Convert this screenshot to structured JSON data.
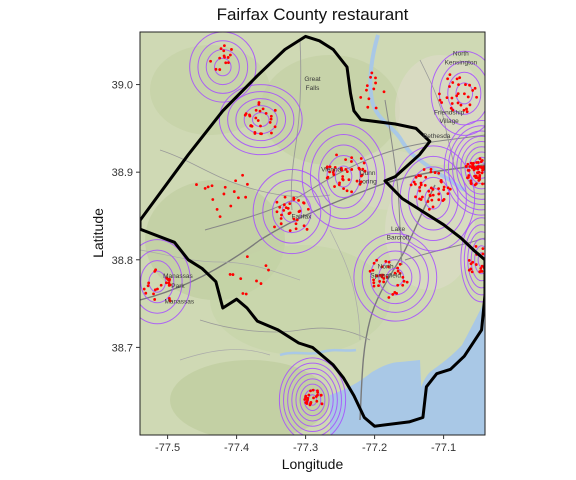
{
  "chart_data": {
    "type": "map",
    "title": "Fairfax County restaurant",
    "xlabel": "Longitude",
    "ylabel": "Latitude",
    "xlim": [
      -77.54,
      -77.04
    ],
    "ylim": [
      38.6,
      39.06
    ],
    "xticks": [
      -77.5,
      -77.4,
      -77.3,
      -77.2,
      -77.1
    ],
    "xtick_labels": [
      "-77.5",
      "-77.4",
      "-77.3",
      "-77.2",
      "-77.1"
    ],
    "yticks": [
      38.7,
      38.8,
      38.9,
      39.0
    ],
    "ytick_labels": [
      "38.7",
      "38.8",
      "38.9",
      "39.0"
    ],
    "grid": false,
    "colors": {
      "contour": "#a64dff",
      "points": "#ff0000",
      "boundary": "#000000",
      "water": "#a9c8e6",
      "land": "#cfd9b4"
    },
    "places": [
      {
        "name": "Great",
        "lon": -77.29,
        "lat": 39.004
      },
      {
        "name": "Falls",
        "lon": -77.29,
        "lat": 38.994
      },
      {
        "name": "North",
        "lon": -77.075,
        "lat": 39.033
      },
      {
        "name": "Kensington",
        "lon": -77.075,
        "lat": 39.023
      },
      {
        "name": "Friendship",
        "lon": -77.092,
        "lat": 38.966
      },
      {
        "name": "Village",
        "lon": -77.092,
        "lat": 38.956
      },
      {
        "name": "Bethesda",
        "lon": -77.11,
        "lat": 38.939
      },
      {
        "name": "Vienna",
        "lon": -77.263,
        "lat": 38.901
      },
      {
        "name": "Dunn",
        "lon": -77.21,
        "lat": 38.897
      },
      {
        "name": "Loring",
        "lon": -77.21,
        "lat": 38.887
      },
      {
        "name": "Lake",
        "lon": -77.166,
        "lat": 38.833
      },
      {
        "name": "Barcroft",
        "lon": -77.166,
        "lat": 38.823
      },
      {
        "name": "Fairfax",
        "lon": -77.306,
        "lat": 38.847
      },
      {
        "name": "North",
        "lon": -77.184,
        "lat": 38.79
      },
      {
        "name": "Springfield",
        "lon": -77.184,
        "lat": 38.78
      },
      {
        "name": "Manassas",
        "lon": -77.485,
        "lat": 38.779
      },
      {
        "name": "Park",
        "lon": -77.485,
        "lat": 38.768
      },
      {
        "name": "Manassas",
        "lon": -77.483,
        "lat": 38.75
      }
    ],
    "boundary": [
      [
        -77.54,
        38.845
      ],
      [
        -77.47,
        38.92
      ],
      [
        -77.42,
        38.97
      ],
      [
        -77.37,
        39.01
      ],
      [
        -77.33,
        39.04
      ],
      [
        -77.3,
        39.055
      ],
      [
        -77.28,
        39.05
      ],
      [
        -77.26,
        39.04
      ],
      [
        -77.24,
        39.02
      ],
      [
        -77.235,
        38.99
      ],
      [
        -77.23,
        38.97
      ],
      [
        -77.22,
        38.96
      ],
      [
        -77.17,
        38.955
      ],
      [
        -77.14,
        38.95
      ],
      [
        -77.12,
        38.935
      ],
      [
        -77.135,
        38.92
      ],
      [
        -77.17,
        38.895
      ],
      [
        -77.185,
        38.89
      ],
      [
        -77.16,
        38.87
      ],
      [
        -77.13,
        38.855
      ],
      [
        -77.1,
        38.84
      ],
      [
        -77.075,
        38.825
      ],
      [
        -77.055,
        38.81
      ],
      [
        -77.04,
        38.8
      ],
      [
        -77.04,
        38.76
      ],
      [
        -77.045,
        38.72
      ],
      [
        -77.07,
        38.69
      ],
      [
        -77.09,
        38.675
      ],
      [
        -77.11,
        38.67
      ],
      [
        -77.125,
        38.655
      ],
      [
        -77.13,
        38.62
      ],
      [
        -77.15,
        38.615
      ],
      [
        -77.2,
        38.61
      ],
      [
        -77.215,
        38.62
      ],
      [
        -77.23,
        38.645
      ],
      [
        -77.245,
        38.665
      ],
      [
        -77.26,
        38.68
      ],
      [
        -77.29,
        38.7
      ],
      [
        -77.31,
        38.705
      ],
      [
        -77.34,
        38.72
      ],
      [
        -77.37,
        38.73
      ],
      [
        -77.385,
        38.745
      ],
      [
        -77.4,
        38.755
      ],
      [
        -77.41,
        38.75
      ],
      [
        -77.42,
        38.745
      ],
      [
        -77.43,
        38.775
      ],
      [
        -77.45,
        38.79
      ],
      [
        -77.47,
        38.8
      ],
      [
        -77.49,
        38.82
      ],
      [
        -77.54,
        38.835
      ]
    ],
    "density_centers": [
      {
        "lon": -77.29,
        "lat": 38.64,
        "rings": 8,
        "rx": 0.006,
        "ry": 0.006
      },
      {
        "lon": -77.365,
        "lat": 38.96,
        "rings": 5,
        "rx": 0.012,
        "ry": 0.008
      },
      {
        "lon": -77.42,
        "lat": 39.02,
        "rings": 4,
        "rx": 0.012,
        "ry": 0.01
      },
      {
        "lon": -77.245,
        "lat": 38.895,
        "rings": 5,
        "rx": 0.012,
        "ry": 0.012
      },
      {
        "lon": -77.32,
        "lat": 38.855,
        "rings": 4,
        "rx": 0.014,
        "ry": 0.012
      },
      {
        "lon": -77.17,
        "lat": 38.78,
        "rings": 5,
        "rx": 0.012,
        "ry": 0.01
      },
      {
        "lon": -77.515,
        "lat": 38.775,
        "rings": 4,
        "rx": 0.012,
        "ry": 0.012
      },
      {
        "lon": -77.115,
        "lat": 38.87,
        "rings": 5,
        "rx": 0.012,
        "ry": 0.012
      },
      {
        "lon": -77.07,
        "lat": 38.99,
        "rings": 4,
        "rx": 0.012,
        "ry": 0.012
      },
      {
        "lon": -77.045,
        "lat": 38.905,
        "rings": 9,
        "rx": 0.006,
        "ry": 0.006
      },
      {
        "lon": -77.045,
        "lat": 38.8,
        "rings": 6,
        "rx": 0.005,
        "ry": 0.008
      }
    ],
    "point_clusters": [
      {
        "lon": -77.29,
        "lat": 38.64,
        "n": 24,
        "spread": 0.015
      },
      {
        "lon": -77.365,
        "lat": 38.96,
        "n": 26,
        "spread": 0.025
      },
      {
        "lon": -77.42,
        "lat": 39.03,
        "n": 14,
        "spread": 0.02
      },
      {
        "lon": -77.24,
        "lat": 38.9,
        "n": 40,
        "spread": 0.03
      },
      {
        "lon": -77.32,
        "lat": 38.85,
        "n": 30,
        "spread": 0.03
      },
      {
        "lon": -77.18,
        "lat": 38.78,
        "n": 34,
        "spread": 0.03
      },
      {
        "lon": -77.51,
        "lat": 38.77,
        "n": 22,
        "spread": 0.025
      },
      {
        "lon": -77.12,
        "lat": 38.88,
        "n": 44,
        "spread": 0.03
      },
      {
        "lon": -77.08,
        "lat": 38.99,
        "n": 30,
        "spread": 0.03
      },
      {
        "lon": -77.05,
        "lat": 38.9,
        "n": 60,
        "spread": 0.02
      },
      {
        "lon": -77.05,
        "lat": 38.8,
        "n": 20,
        "spread": 0.02
      },
      {
        "lon": -77.42,
        "lat": 38.88,
        "n": 16,
        "spread": 0.04
      },
      {
        "lon": -77.2,
        "lat": 38.99,
        "n": 12,
        "spread": 0.03
      },
      {
        "lon": -77.38,
        "lat": 38.78,
        "n": 10,
        "spread": 0.03
      }
    ]
  }
}
